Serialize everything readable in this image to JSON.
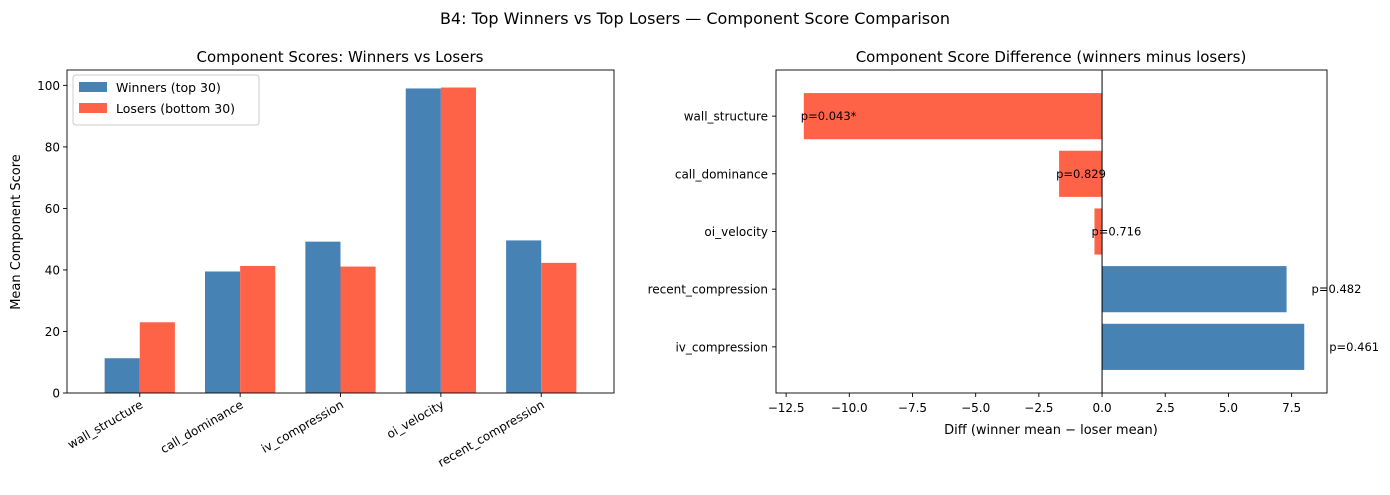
{
  "suptitle": "B4: Top Winners vs Top Losers — Component Score Comparison",
  "colors": {
    "winners": "#4682b4",
    "losers": "#ff6347"
  },
  "chart_data": [
    {
      "type": "bar",
      "title": "Component Scores: Winners vs Losers",
      "xlabel": "",
      "ylabel": "Mean Component Score",
      "categories": [
        "wall_structure",
        "call_dominance",
        "iv_compression",
        "oi_velocity",
        "recent_compression"
      ],
      "series": [
        {
          "name": "Winners (top 30)",
          "color": "#4682b4",
          "values": [
            11.3,
            39.5,
            49.2,
            99.0,
            49.6
          ]
        },
        {
          "name": "Losers (bottom 30)",
          "color": "#ff6347",
          "values": [
            23.0,
            41.3,
            41.1,
            99.3,
            42.3
          ]
        }
      ],
      "ylim": [
        0,
        105
      ],
      "yticks": [
        0,
        20,
        40,
        60,
        80,
        100
      ],
      "legend_position": "upper-left",
      "grid": false
    },
    {
      "type": "bar",
      "orientation": "horizontal",
      "title": "Component Score Difference (winners minus losers)",
      "xlabel": "Diff (winner mean − loser mean)",
      "ylabel": "",
      "categories": [
        "wall_structure",
        "call_dominance",
        "oi_velocity",
        "recent_compression",
        "iv_compression"
      ],
      "values": [
        -11.8,
        -1.7,
        -0.3,
        7.3,
        8.0
      ],
      "annotations": [
        "p=0.043*",
        "p=0.829",
        "p=0.716",
        "p=0.482",
        "p=0.461"
      ],
      "xlim": [
        -12.9,
        8.9
      ],
      "xticks": [
        -12.5,
        -10.0,
        -7.5,
        -5.0,
        -2.5,
        0.0,
        2.5,
        5.0,
        7.5
      ],
      "xtick_labels": [
        "−12.5",
        "−10.0",
        "−7.5",
        "−5.0",
        "−2.5",
        "0.0",
        "2.5",
        "5.0",
        "7.5"
      ],
      "positive_color": "#4682b4",
      "negative_color": "#ff6347",
      "zero_line": true,
      "grid": false
    }
  ]
}
